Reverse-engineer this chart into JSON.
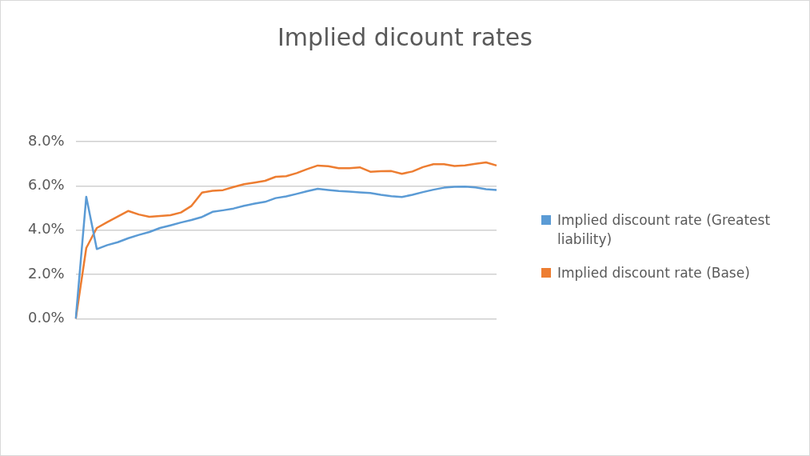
{
  "chart_data": {
    "type": "line",
    "title": "Implied dicount rates",
    "categories": [
      null,
      null,
      null,
      null,
      null,
      null,
      null,
      null,
      null,
      null,
      null,
      null,
      null,
      null,
      null,
      null,
      null,
      null,
      null,
      null,
      null,
      null,
      null,
      null,
      null,
      null,
      null,
      null,
      null,
      null,
      null,
      null,
      null,
      null,
      null,
      null,
      null,
      null,
      null,
      null,
      null
    ],
    "series": [
      {
        "name": "Implied discount rate (Greatest liability)",
        "color": "#5b9bd5",
        "values": [
          0,
          5.51,
          3.15,
          3.33,
          3.46,
          3.64,
          3.79,
          3.92,
          4.1,
          4.22,
          4.35,
          4.46,
          4.6,
          4.83,
          4.9,
          4.98,
          5.1,
          5.2,
          5.28,
          5.45,
          5.53,
          5.64,
          5.76,
          5.87,
          5.82,
          5.77,
          5.74,
          5.71,
          5.68,
          5.6,
          5.54,
          5.5,
          5.6,
          5.72,
          5.83,
          5.92,
          5.96,
          5.97,
          5.93,
          5.85,
          5.82
        ]
      },
      {
        "name": "Implied discount rate (Base)",
        "color": "#ed7d31",
        "values": [
          0,
          3.2,
          4.1,
          4.37,
          4.62,
          4.87,
          4.71,
          4.61,
          4.64,
          4.68,
          4.8,
          5.1,
          5.7,
          5.78,
          5.81,
          5.95,
          6.08,
          6.15,
          6.23,
          6.41,
          6.44,
          6.58,
          6.76,
          6.92,
          6.89,
          6.8,
          6.8,
          6.84,
          6.64,
          6.66,
          6.67,
          6.55,
          6.65,
          6.85,
          6.98,
          6.98,
          6.9,
          6.93,
          7.0,
          7.06,
          6.92
        ]
      }
    ],
    "ylim": [
      0,
      8
    ],
    "yticks": [
      {
        "value": 0,
        "label": "0.0%"
      },
      {
        "value": 2,
        "label": "2.0%"
      },
      {
        "value": 4,
        "label": "4.0%"
      },
      {
        "value": 6,
        "label": "6.0%"
      },
      {
        "value": 8,
        "label": "8.0%"
      }
    ],
    "grid": "y",
    "legend": "right",
    "marker": "none",
    "line_style": "solid"
  }
}
